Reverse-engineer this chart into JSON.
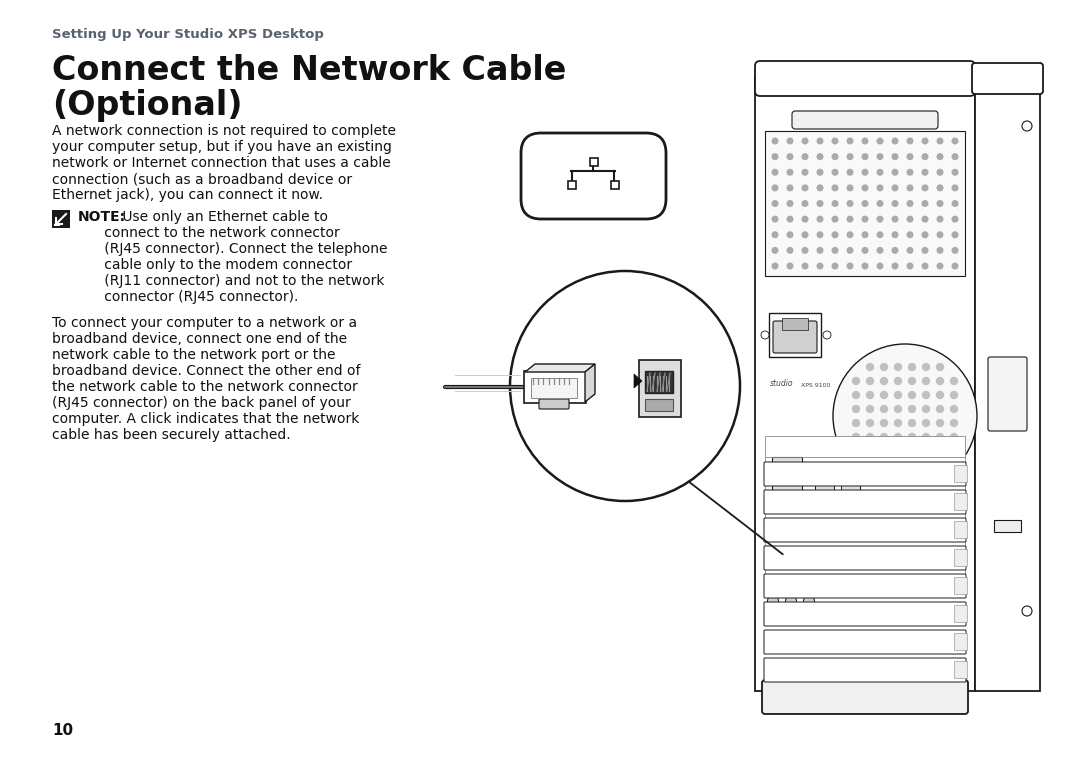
{
  "bg_color": "#ffffff",
  "header_text": "Setting Up Your Studio XPS Desktop",
  "header_color": "#5a6270",
  "title_line1": "Connect the Network Cable",
  "title_line2": "(Optional)",
  "title_color": "#111111",
  "body1_lines": [
    "A network connection is not required to complete",
    "your computer setup, but if you have an existing",
    "network or Internet connection that uses a cable",
    "connection (such as a broadband device or",
    "Ethernet jack), you can connect it now."
  ],
  "note_label": "NOTE:",
  "note_continuation": " Use only an Ethernet cable to",
  "note_lines": [
    "      connect to the network connector",
    "      (RJ45 connector). Connect the telephone",
    "      cable only to the modem connector",
    "      (RJ11 connector) and not to the network",
    "      connector (RJ45 connector)."
  ],
  "body2_lines": [
    "To connect your computer to a network or a",
    "broadband device, connect one end of the",
    "network cable to the network port or the",
    "broadband device. Connect the other end of",
    "the network cable to the network connector",
    "(RJ45 connector) on the back panel of your",
    "computer. A click indicates that the network",
    "cable has been securely attached."
  ],
  "page_number": "10",
  "text_color": "#111111",
  "line_color": "#1a1a1a",
  "gray_dot": "#aaaaaa",
  "light_gray": "#e8e8e8"
}
